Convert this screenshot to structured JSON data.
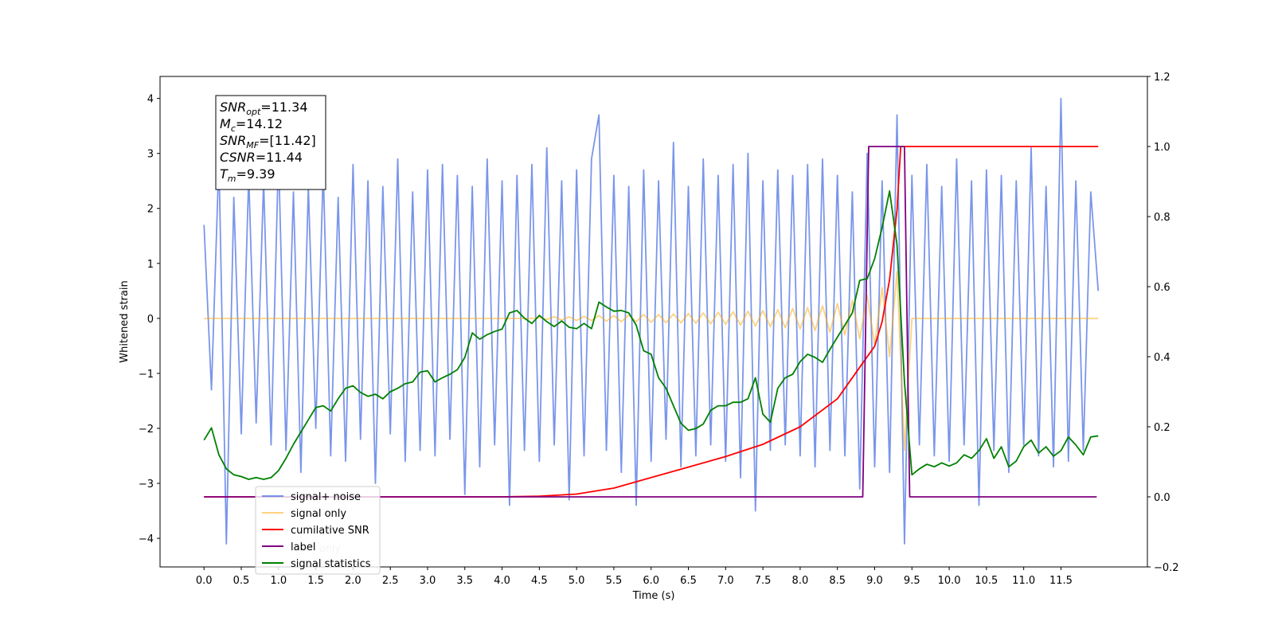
{
  "chart_data": {
    "type": "line",
    "xlabel": "Time (s)",
    "ylabel": "Whitened strain",
    "x": [
      0.0,
      0.1,
      0.2,
      0.3,
      0.4,
      0.5,
      0.6,
      0.7,
      0.8,
      0.9,
      1.0,
      1.1,
      1.2,
      1.3,
      1.4,
      1.5,
      1.6,
      1.7,
      1.8,
      1.9,
      2.0,
      2.1,
      2.2,
      2.3,
      2.4,
      2.5,
      2.6,
      2.7,
      2.8,
      2.9,
      3.0,
      3.1,
      3.2,
      3.3,
      3.4,
      3.5,
      3.6,
      3.7,
      3.8,
      3.9,
      4.0,
      4.1,
      4.2,
      4.3,
      4.4,
      4.5,
      4.6,
      4.7,
      4.8,
      4.9,
      5.0,
      5.1,
      5.2,
      5.3,
      5.4,
      5.5,
      5.6,
      5.7,
      5.8,
      5.9,
      6.0,
      6.1,
      6.2,
      6.3,
      6.4,
      6.5,
      6.6,
      6.7,
      6.8,
      6.9,
      7.0,
      7.1,
      7.2,
      7.3,
      7.4,
      7.5,
      7.6,
      7.7,
      7.8,
      7.9,
      8.0,
      8.1,
      8.2,
      8.3,
      8.4,
      8.5,
      8.6,
      8.7,
      8.8,
      8.9,
      9.0,
      9.1,
      9.2,
      9.3,
      9.4,
      9.5,
      9.6,
      9.7,
      9.8,
      9.9,
      10.0,
      10.1,
      10.2,
      10.3,
      10.4,
      10.5,
      10.6,
      10.7,
      10.8,
      10.9,
      11.0,
      11.1,
      11.2,
      11.3,
      11.4,
      11.5,
      11.6,
      11.7,
      11.8,
      11.9,
      12.0
    ],
    "series": [
      {
        "name": "signal+ noise",
        "color": "#4169e1",
        "opacity": 0.7,
        "values": [
          1.7,
          -1.3,
          2.9,
          -4.1,
          2.2,
          -2.1,
          2.6,
          -1.9,
          2.5,
          -2.3,
          3.0,
          -2.4,
          2.3,
          -2.8,
          2.4,
          -2.0,
          2.7,
          -2.5,
          2.2,
          -2.6,
          2.8,
          -2.2,
          2.5,
          -3.0,
          2.4,
          -2.1,
          2.9,
          -2.6,
          2.3,
          -2.4,
          2.7,
          -2.5,
          2.8,
          -2.2,
          2.6,
          -3.2,
          2.4,
          -2.7,
          2.9,
          -2.3,
          2.5,
          -3.4,
          2.6,
          -2.4,
          2.8,
          -2.6,
          3.1,
          -2.3,
          2.5,
          -3.3,
          2.7,
          -2.5,
          2.9,
          3.7,
          -2.4,
          2.6,
          -2.8,
          2.4,
          -3.4,
          2.7,
          -2.6,
          2.5,
          -2.2,
          3.2,
          -2.7,
          2.4,
          -2.5,
          2.9,
          -2.3,
          2.6,
          -2.6,
          2.8,
          -2.9,
          3.0,
          -3.5,
          2.5,
          -2.4,
          2.7,
          -2.3,
          2.6,
          -2.5,
          2.8,
          -2.7,
          2.9,
          -2.4,
          2.6,
          -2.5,
          2.3,
          -3.1,
          3.0,
          -2.7,
          2.5,
          -2.8,
          3.7,
          -4.1,
          2.6,
          -2.3,
          2.8,
          -2.5,
          2.4,
          -2.6,
          2.9,
          -2.3,
          2.5,
          -3.4,
          2.7,
          -2.4,
          2.6,
          -2.8,
          2.5,
          -2.3,
          3.1,
          -2.5,
          2.4,
          -2.7,
          4.0,
          -2.6,
          2.5,
          -2.4,
          2.3,
          0.5
        ]
      },
      {
        "name": "signal only",
        "color": "#ffa500",
        "opacity": 0.5,
        "values": [
          0,
          0,
          0,
          0,
          0,
          0,
          0,
          0,
          0,
          0,
          0,
          0,
          0,
          0,
          0,
          0,
          0,
          0,
          0,
          0,
          0,
          0,
          0,
          0,
          0,
          0,
          0,
          0,
          0,
          0,
          0,
          0,
          0,
          0,
          0,
          0,
          0,
          0,
          0,
          0,
          0,
          0,
          0,
          0,
          0,
          0.02,
          -0.02,
          0.03,
          -0.03,
          0.03,
          -0.04,
          0.04,
          -0.04,
          0.05,
          -0.05,
          0.05,
          -0.06,
          0.06,
          -0.06,
          0.07,
          -0.07,
          0.07,
          -0.08,
          0.08,
          -0.08,
          0.09,
          -0.09,
          0.1,
          -0.1,
          0.11,
          -0.11,
          0.12,
          -0.12,
          0.13,
          -0.14,
          0.14,
          -0.15,
          0.16,
          -0.17,
          0.18,
          -0.19,
          0.2,
          -0.22,
          0.23,
          -0.25,
          0.27,
          -0.3,
          0.33,
          -0.37,
          0.42,
          -0.48,
          0.56,
          -0.7,
          0.85,
          -2.4,
          0,
          0,
          0,
          0,
          0,
          0,
          0,
          0,
          0,
          0,
          0,
          0,
          0,
          0,
          0,
          0,
          0,
          0,
          0,
          0,
          0,
          0,
          0,
          0,
          0,
          0
        ]
      },
      {
        "name": "cumilative SNR",
        "color": "#ff0000",
        "axis": "y2",
        "x": [
          0,
          4.0,
          4.5,
          5.0,
          5.5,
          6.0,
          6.5,
          7.0,
          7.5,
          8.0,
          8.5,
          9.0,
          9.1,
          9.2,
          9.3,
          9.35,
          9.4,
          12.0
        ],
        "values": [
          0,
          0,
          0.002,
          0.008,
          0.025,
          0.055,
          0.085,
          0.115,
          0.15,
          0.2,
          0.28,
          0.43,
          0.5,
          0.62,
          0.82,
          1.0,
          1.0,
          1.0
        ]
      },
      {
        "name": "label",
        "color": "#800080",
        "axis": "y2",
        "x": [
          0,
          8.84,
          8.92,
          9.4,
          9.47,
          11.98
        ],
        "values": [
          0,
          0,
          1,
          1,
          0,
          0
        ]
      },
      {
        "name": "signal statistics",
        "color": "#008000",
        "axis": "y2",
        "values": [
          0.162,
          0.197,
          0.12,
          0.08,
          0.063,
          0.058,
          0.05,
          0.055,
          0.05,
          0.055,
          0.075,
          0.11,
          0.15,
          0.185,
          0.22,
          0.255,
          0.26,
          0.245,
          0.28,
          0.31,
          0.317,
          0.298,
          0.287,
          0.293,
          0.28,
          0.3,
          0.31,
          0.323,
          0.328,
          0.356,
          0.36,
          0.328,
          0.34,
          0.35,
          0.363,
          0.398,
          0.468,
          0.45,
          0.463,
          0.472,
          0.479,
          0.525,
          0.532,
          0.51,
          0.495,
          0.518,
          0.5,
          0.486,
          0.502,
          0.484,
          0.48,
          0.495,
          0.48,
          0.556,
          0.542,
          0.53,
          0.532,
          0.525,
          0.49,
          0.417,
          0.407,
          0.34,
          0.31,
          0.26,
          0.21,
          0.19,
          0.195,
          0.208,
          0.247,
          0.26,
          0.26,
          0.27,
          0.27,
          0.28,
          0.34,
          0.236,
          0.213,
          0.31,
          0.34,
          0.35,
          0.386,
          0.407,
          0.398,
          0.384,
          0.421,
          0.456,
          0.49,
          0.525,
          0.618,
          0.623,
          0.68,
          0.769,
          0.873,
          0.72,
          0.328,
          0.063,
          0.08,
          0.093,
          0.086,
          0.097,
          0.088,
          0.097,
          0.12,
          0.11,
          0.132,
          0.166,
          0.11,
          0.143,
          0.086,
          0.102,
          0.143,
          0.162,
          0.125,
          0.143,
          0.116,
          0.132,
          0.171,
          0.148,
          0.12,
          0.171,
          0.174
        ]
      }
    ],
    "ghost_legend_text": "label only",
    "xlim": [
      -0.59,
      12.66
    ],
    "xticks": [
      {
        "value": 0,
        "label": "0.0"
      },
      {
        "value": 0.5,
        "label": "0.5"
      },
      {
        "value": 1,
        "label": "1.0"
      },
      {
        "value": 1.5,
        "label": "1.5"
      },
      {
        "value": 2,
        "label": "2.0"
      },
      {
        "value": 2.5,
        "label": "2.5"
      },
      {
        "value": 3,
        "label": "3.0"
      },
      {
        "value": 3.5,
        "label": "3.5"
      },
      {
        "value": 4,
        "label": "4.0"
      },
      {
        "value": 4.5,
        "label": "4.5"
      },
      {
        "value": 5,
        "label": "5.0"
      },
      {
        "value": 5.5,
        "label": "5.5"
      },
      {
        "value": 6,
        "label": "6.0"
      },
      {
        "value": 6.5,
        "label": "6.5"
      },
      {
        "value": 7,
        "label": "7.0"
      },
      {
        "value": 7.5,
        "label": "7.5"
      },
      {
        "value": 8,
        "label": "8.0"
      },
      {
        "value": 8.5,
        "label": "8.5"
      },
      {
        "value": 9,
        "label": "9.0"
      },
      {
        "value": 9.5,
        "label": "9.5"
      },
      {
        "value": 10,
        "label": "10.0"
      },
      {
        "value": 10.5,
        "label": "10.5"
      },
      {
        "value": 11,
        "label": "11.0"
      },
      {
        "value": 11.5,
        "label": "11.5"
      }
    ],
    "ylim": [
      -4.52,
      4.4
    ],
    "yticks": [
      {
        "value": -4,
        "label": "−4"
      },
      {
        "value": -3,
        "label": "−3"
      },
      {
        "value": -2,
        "label": "−2"
      },
      {
        "value": -1,
        "label": "−1"
      },
      0,
      1,
      2,
      3,
      4
    ],
    "y2lim": [
      -0.2,
      1.2
    ],
    "y2ticks": [
      {
        "value": -0.2,
        "label": "−0.2"
      },
      {
        "value": 0,
        "label": "0.0"
      },
      0.2,
      0.4,
      0.6,
      0.8,
      {
        "value": 1,
        "label": "1.0"
      },
      1.2
    ],
    "annotation": [
      {
        "var": "SNR",
        "sub": "opt",
        "text": "=11.34"
      },
      {
        "var": "M",
        "sub": "c",
        "text": "=14.12"
      },
      {
        "var": "SNR",
        "sub": "MF",
        "text": "=[11.42]"
      },
      {
        "var": "CSNR",
        "sub": "",
        "text": "=11.44"
      },
      {
        "var": "T",
        "sub": "m",
        "text": "=9.39"
      }
    ]
  }
}
